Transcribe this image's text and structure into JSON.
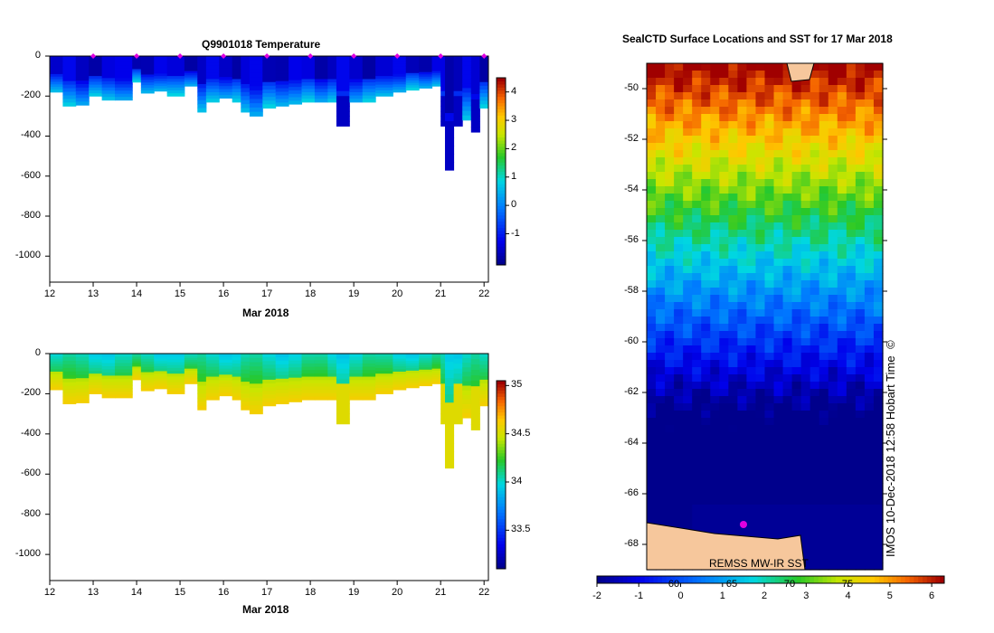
{
  "chart_data": [
    {
      "type": "heatmap",
      "title": "Q9901018  Temperature",
      "xlabel": "Mar 2018",
      "ylabel": "",
      "x_ticks": [
        "12",
        "13",
        "14",
        "15",
        "16",
        "17",
        "18",
        "19",
        "20",
        "21",
        "22"
      ],
      "y_ticks": [
        "0",
        "-200",
        "-400",
        "-600",
        "-800",
        "-1000"
      ],
      "xlim": [
        12,
        22.1
      ],
      "ylim": [
        -1130,
        0
      ],
      "colorbar": {
        "ticks": [
          "4",
          "3",
          "2",
          "1",
          "0",
          "-1"
        ],
        "range": [
          -2.1,
          4.5
        ]
      },
      "profile_marker_days": [
        13,
        14,
        15,
        16,
        17,
        18,
        19,
        20,
        21,
        22
      ],
      "profile_color": "#e000e0",
      "profiles": [
        {
          "day": 12.0,
          "depth": -180
        },
        {
          "day": 12.3,
          "depth": -250
        },
        {
          "day": 12.6,
          "depth": -245
        },
        {
          "day": 12.9,
          "depth": -200
        },
        {
          "day": 13.2,
          "depth": -220
        },
        {
          "day": 13.5,
          "depth": -220
        },
        {
          "day": 13.9,
          "depth": -130
        },
        {
          "day": 14.1,
          "depth": -185
        },
        {
          "day": 14.4,
          "depth": -175
        },
        {
          "day": 14.7,
          "depth": -200
        },
        {
          "day": 15.1,
          "depth": -150
        },
        {
          "day": 15.4,
          "depth": -280
        },
        {
          "day": 15.6,
          "depth": -230
        },
        {
          "day": 15.9,
          "depth": -210
        },
        {
          "day": 16.2,
          "depth": -230
        },
        {
          "day": 16.4,
          "depth": -280
        },
        {
          "day": 16.6,
          "depth": -300
        },
        {
          "day": 16.9,
          "depth": -260
        },
        {
          "day": 17.2,
          "depth": -250
        },
        {
          "day": 17.5,
          "depth": -240
        },
        {
          "day": 17.8,
          "depth": -230
        },
        {
          "day": 18.1,
          "depth": -230
        },
        {
          "day": 18.4,
          "depth": -230
        },
        {
          "day": 18.6,
          "depth": -350
        },
        {
          "day": 18.9,
          "depth": -230
        },
        {
          "day": 19.2,
          "depth": -230
        },
        {
          "day": 19.5,
          "depth": -200
        },
        {
          "day": 19.9,
          "depth": -180
        },
        {
          "day": 20.2,
          "depth": -170
        },
        {
          "day": 20.5,
          "depth": -160
        },
        {
          "day": 20.8,
          "depth": -150
        },
        {
          "day": 21.0,
          "depth": -350
        },
        {
          "day": 21.1,
          "depth": -570
        },
        {
          "day": 21.3,
          "depth": -350
        },
        {
          "day": 21.5,
          "depth": -320
        },
        {
          "day": 21.7,
          "depth": -380
        },
        {
          "day": 21.9,
          "depth": -260
        }
      ]
    },
    {
      "type": "heatmap",
      "title": "",
      "xlabel": "Mar 2018",
      "ylabel": "",
      "x_ticks": [
        "12",
        "13",
        "14",
        "15",
        "16",
        "17",
        "18",
        "19",
        "20",
        "21",
        "22"
      ],
      "y_ticks": [
        "0",
        "-200",
        "-400",
        "-600",
        "-800",
        "-1000"
      ],
      "xlim": [
        12,
        22.1
      ],
      "ylim": [
        -1130,
        0
      ],
      "colorbar": {
        "ticks": [
          "35",
          "34.5",
          "34",
          "33.5"
        ],
        "range": [
          33.1,
          35.05
        ]
      }
    },
    {
      "type": "heatmap",
      "title": "SealCTD Surface Locations and SST for 17 Mar 2018",
      "y_ticks": [
        "-50",
        "-52",
        "-54",
        "-56",
        "-58",
        "-60",
        "-62",
        "-64",
        "-66",
        "-68"
      ],
      "ylim": [
        -69,
        -49
      ],
      "x_inner_labels": [
        "60",
        "65",
        "70",
        "75"
      ],
      "colorbar": {
        "ticks": [
          "-2",
          "-1",
          "0",
          "1",
          "2",
          "3",
          "4",
          "5",
          "6"
        ],
        "range": [
          -2,
          6.3
        ]
      },
      "source_label": "REMSS MW-IR SST"
    }
  ],
  "credit": "IMOS 10-Dec-2018 12:58 Hobart Time",
  "copyright": "©"
}
